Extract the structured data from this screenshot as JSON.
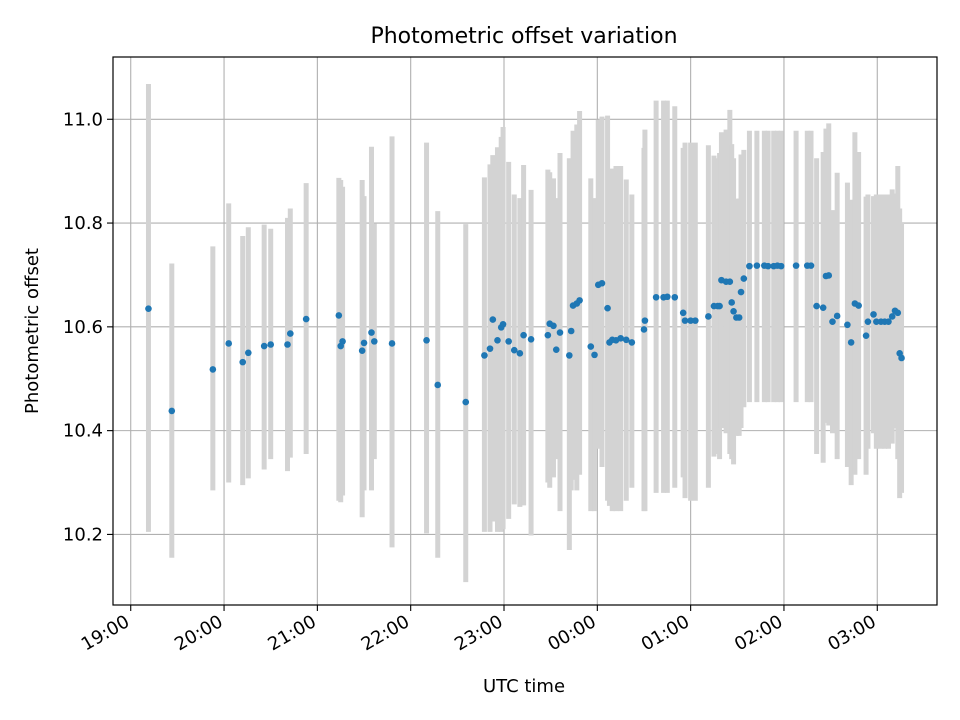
{
  "chart_data": {
    "type": "scatter",
    "title": "Photometric offset variation",
    "xlabel": "UTC time",
    "ylabel": "Photometric offset",
    "x_unit": "hours since 19:00 UTC",
    "xlim": [
      -0.19,
      8.64
    ],
    "ylim": [
      10.064,
      11.12
    ],
    "grid": true,
    "x_ticks": [
      {
        "value": 0,
        "label": "19:00"
      },
      {
        "value": 1,
        "label": "20:00"
      },
      {
        "value": 2,
        "label": "21:00"
      },
      {
        "value": 3,
        "label": "22:00"
      },
      {
        "value": 4,
        "label": "23:00"
      },
      {
        "value": 5,
        "label": "00:00"
      },
      {
        "value": 6,
        "label": "01:00"
      },
      {
        "value": 7,
        "label": "02:00"
      },
      {
        "value": 8,
        "label": "03:00"
      }
    ],
    "y_ticks": [
      {
        "value": 10.2,
        "label": "10.2"
      },
      {
        "value": 10.4,
        "label": "10.4"
      },
      {
        "value": 10.6,
        "label": "10.6"
      },
      {
        "value": 10.8,
        "label": "10.8"
      },
      {
        "value": 11.0,
        "label": "11.0"
      }
    ],
    "colors": {
      "point": "#1f77b4",
      "errorbar": "#d3d3d3",
      "grid": "#b0b0b0",
      "axes": "#000000"
    },
    "series": [
      {
        "name": "Photometric offset",
        "points": [
          [
            0.19,
            10.635,
            10.205,
            11.068
          ],
          [
            0.44,
            10.438,
            10.155,
            10.722
          ],
          [
            0.88,
            10.518,
            10.285,
            10.755
          ],
          [
            1.05,
            10.568,
            10.3,
            10.838
          ],
          [
            1.2,
            10.532,
            10.295,
            10.775
          ],
          [
            1.26,
            10.55,
            10.308,
            10.792
          ],
          [
            1.43,
            10.563,
            10.325,
            10.797
          ],
          [
            1.5,
            10.566,
            10.345,
            10.789
          ],
          [
            1.68,
            10.566,
            10.322,
            10.81
          ],
          [
            1.71,
            10.587,
            10.348,
            10.828
          ],
          [
            1.88,
            10.615,
            10.355,
            10.877
          ],
          [
            2.23,
            10.622,
            10.265,
            10.887
          ],
          [
            2.25,
            10.563,
            10.262,
            10.883
          ],
          [
            2.27,
            10.572,
            10.275,
            10.87
          ],
          [
            2.48,
            10.554,
            10.233,
            10.883
          ],
          [
            2.5,
            10.569,
            10.285,
            10.852
          ],
          [
            2.58,
            10.589,
            10.285,
            10.947
          ],
          [
            2.61,
            10.572,
            10.345,
            10.799
          ],
          [
            2.8,
            10.568,
            10.175,
            10.967
          ],
          [
            3.17,
            10.574,
            10.202,
            10.955
          ],
          [
            3.29,
            10.488,
            10.155,
            10.823
          ],
          [
            3.59,
            10.455,
            10.108,
            10.798
          ],
          [
            3.79,
            10.545,
            10.205,
            10.888
          ],
          [
            3.85,
            10.558,
            10.205,
            10.913
          ],
          [
            3.88,
            10.614,
            10.225,
            10.931
          ],
          [
            3.93,
            10.574,
            10.205,
            10.946
          ],
          [
            3.97,
            10.599,
            10.205,
            10.966
          ],
          [
            3.99,
            10.605,
            10.21,
            10.985
          ],
          [
            4.05,
            10.572,
            10.23,
            10.918
          ],
          [
            4.11,
            10.555,
            10.258,
            10.855
          ],
          [
            4.17,
            10.549,
            10.253,
            10.848
          ],
          [
            4.21,
            10.584,
            10.256,
            10.912
          ],
          [
            4.29,
            10.576,
            10.198,
            10.864
          ],
          [
            4.47,
            10.584,
            10.3,
            10.903
          ],
          [
            4.49,
            10.606,
            10.29,
            10.898
          ],
          [
            4.53,
            10.602,
            10.31,
            10.886
          ],
          [
            4.56,
            10.556,
            10.345,
            10.848
          ],
          [
            4.6,
            10.589,
            10.245,
            10.935
          ],
          [
            4.7,
            10.545,
            10.17,
            10.925
          ],
          [
            4.72,
            10.592,
            10.285,
            10.9
          ],
          [
            4.74,
            10.641,
            10.305,
            10.978
          ],
          [
            4.78,
            10.645,
            10.285,
            10.99
          ],
          [
            4.81,
            10.651,
            10.315,
            11.016
          ],
          [
            4.93,
            10.562,
            10.245,
            10.886
          ],
          [
            4.97,
            10.546,
            10.245,
            10.848
          ],
          [
            5.01,
            10.681,
            10.365,
            10.999
          ],
          [
            5.05,
            10.684,
            10.33,
            11.005
          ],
          [
            5.11,
            10.636,
            10.265,
            11.007
          ],
          [
            5.13,
            10.57,
            10.255,
            10.887
          ],
          [
            5.16,
            10.575,
            10.245,
            10.905
          ],
          [
            5.2,
            10.574,
            10.245,
            10.91
          ],
          [
            5.25,
            10.578,
            10.245,
            10.91
          ],
          [
            5.31,
            10.575,
            10.265,
            10.884
          ],
          [
            5.37,
            10.57,
            10.29,
            10.855
          ],
          [
            5.5,
            10.595,
            10.245,
            10.945
          ],
          [
            5.51,
            10.612,
            10.245,
            10.98
          ],
          [
            5.63,
            10.657,
            10.28,
            11.036
          ],
          [
            5.71,
            10.657,
            10.28,
            11.036
          ],
          [
            5.75,
            10.658,
            10.28,
            11.036
          ],
          [
            5.83,
            10.657,
            10.29,
            11.025
          ],
          [
            5.92,
            10.627,
            10.31,
            10.945
          ],
          [
            5.94,
            10.612,
            10.27,
            10.955
          ],
          [
            6.0,
            10.612,
            10.265,
            10.955
          ],
          [
            6.05,
            10.612,
            10.265,
            10.955
          ],
          [
            6.19,
            10.62,
            10.29,
            10.95
          ],
          [
            6.25,
            10.64,
            10.35,
            10.93
          ],
          [
            6.29,
            10.64,
            10.355,
            10.925
          ],
          [
            6.31,
            10.64,
            10.345,
            10.935
          ],
          [
            6.33,
            10.69,
            10.405,
            10.975
          ],
          [
            6.38,
            10.687,
            10.395,
            10.98
          ],
          [
            6.42,
            10.687,
            10.355,
            11.018
          ],
          [
            6.44,
            10.647,
            10.345,
            10.952
          ],
          [
            6.46,
            10.63,
            10.335,
            10.925
          ],
          [
            6.49,
            10.618,
            10.39,
            10.847
          ],
          [
            6.52,
            10.618,
            10.39,
            10.847
          ],
          [
            6.54,
            10.667,
            10.405,
            10.932
          ],
          [
            6.57,
            10.693,
            10.445,
            10.941
          ],
          [
            6.63,
            10.717,
            10.455,
            10.978
          ],
          [
            6.71,
            10.718,
            10.455,
            10.978
          ],
          [
            6.79,
            10.718,
            10.455,
            10.978
          ],
          [
            6.83,
            10.717,
            10.455,
            10.978
          ],
          [
            6.89,
            10.717,
            10.455,
            10.978
          ],
          [
            6.93,
            10.718,
            10.455,
            10.978
          ],
          [
            6.97,
            10.717,
            10.455,
            10.978
          ],
          [
            7.13,
            10.718,
            10.455,
            10.978
          ],
          [
            7.25,
            10.718,
            10.455,
            10.978
          ],
          [
            7.29,
            10.718,
            10.455,
            10.978
          ],
          [
            7.35,
            10.64,
            10.355,
            10.925
          ],
          [
            7.42,
            10.637,
            10.338,
            10.937
          ],
          [
            7.45,
            10.698,
            10.415,
            10.982
          ],
          [
            7.48,
            10.699,
            10.41,
            10.992
          ],
          [
            7.52,
            10.61,
            10.395,
            10.825
          ],
          [
            7.57,
            10.621,
            10.345,
            10.897
          ],
          [
            7.68,
            10.604,
            10.33,
            10.878
          ],
          [
            7.72,
            10.57,
            10.295,
            10.845
          ],
          [
            7.76,
            10.645,
            10.315,
            10.975
          ],
          [
            7.8,
            10.641,
            10.345,
            10.937
          ],
          [
            7.88,
            10.583,
            10.315,
            10.851
          ],
          [
            7.9,
            10.61,
            10.365,
            10.855
          ],
          [
            7.96,
            10.624,
            10.395,
            10.852
          ],
          [
            7.99,
            10.61,
            10.365,
            10.855
          ],
          [
            8.04,
            10.61,
            10.365,
            10.855
          ],
          [
            8.08,
            10.61,
            10.365,
            10.855
          ],
          [
            8.12,
            10.61,
            10.365,
            10.855
          ],
          [
            8.16,
            10.62,
            10.375,
            10.865
          ],
          [
            8.19,
            10.631,
            10.405,
            10.857
          ],
          [
            8.22,
            10.627,
            10.345,
            10.91
          ],
          [
            8.24,
            10.549,
            10.27,
            10.828
          ],
          [
            8.26,
            10.54,
            10.28,
            10.8
          ]
        ]
      }
    ]
  }
}
